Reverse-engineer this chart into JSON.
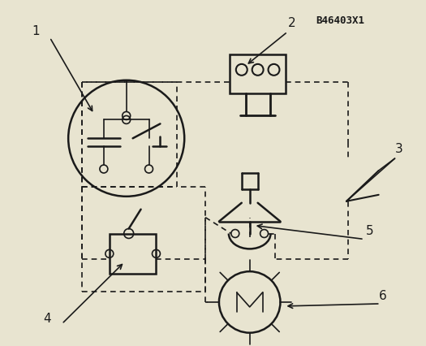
{
  "bg_color": "#e8e4d0",
  "line_color": "#1a1a1a",
  "title_text": "B46403X1",
  "label_fontsize": 11,
  "title_fontsize": 9
}
